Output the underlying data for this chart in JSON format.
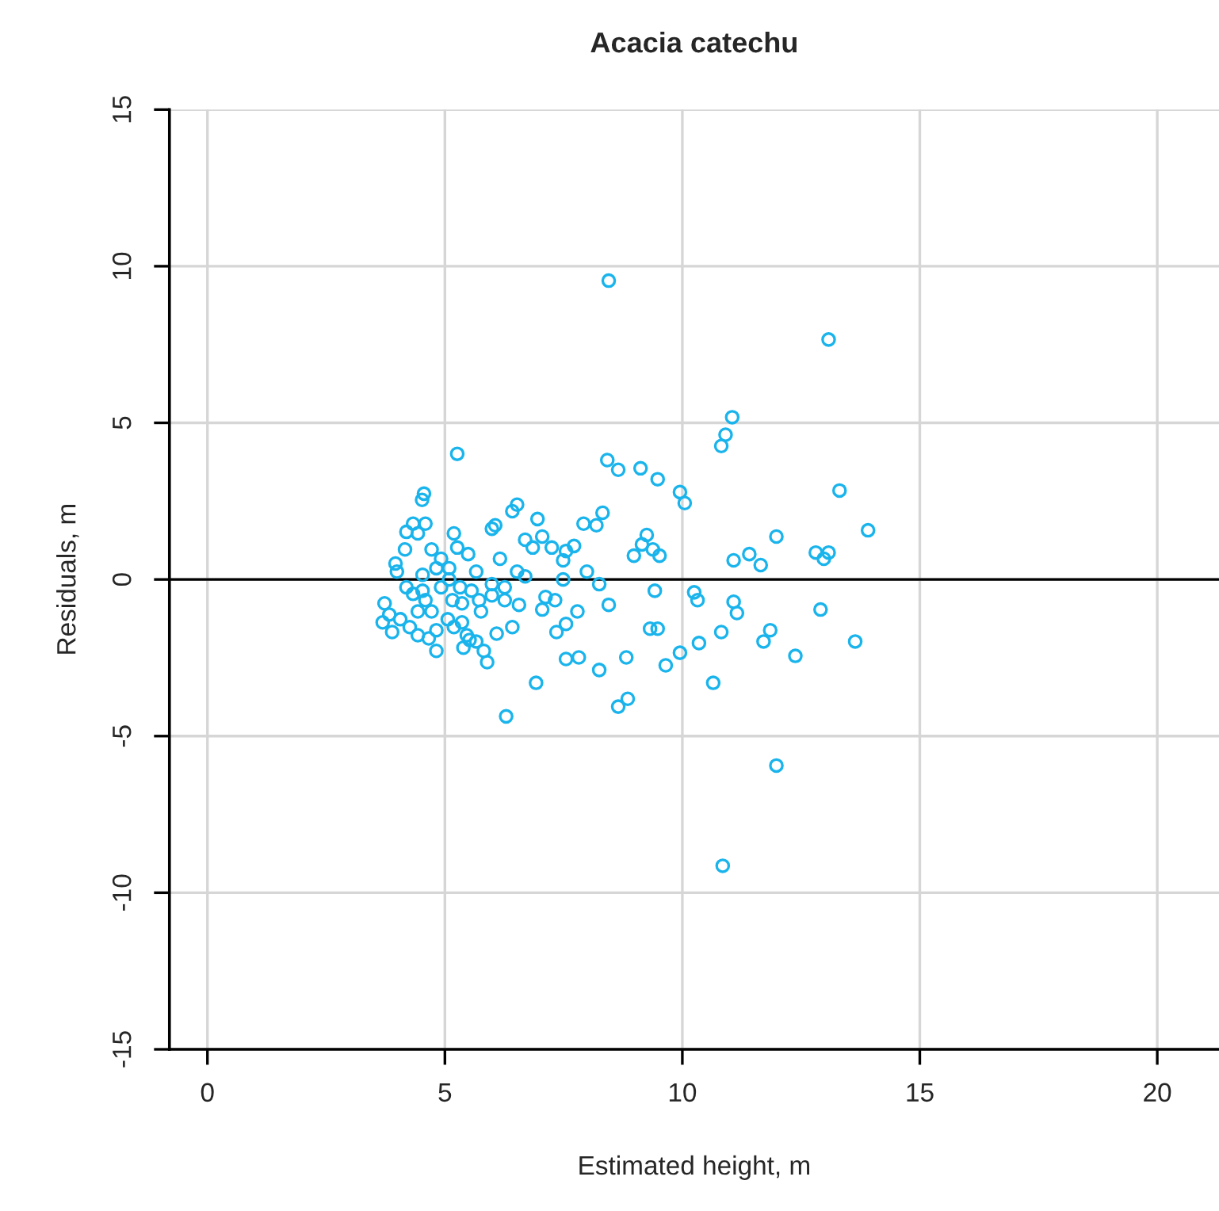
{
  "chart_data": {
    "type": "scatter",
    "title": "Acacia catechu",
    "xlabel": "Estimated height, m",
    "ylabel": "Residuals, m",
    "xlim": [
      -0.8,
      21.3
    ],
    "xticks": [
      0,
      5,
      10,
      15,
      20
    ],
    "ylim": [
      -15,
      15
    ],
    "yticks": [
      -15,
      -10,
      -5,
      0,
      5,
      10,
      15
    ],
    "grid": true,
    "marker": "circle",
    "legend": false,
    "ref_lines": [
      {
        "axis": "y",
        "value": 0,
        "color": "#000000",
        "line_style": "solid"
      }
    ],
    "series": [
      {
        "color": "#1ab4ec",
        "x": [
          8.45,
          13.08,
          11.05,
          10.91,
          10.82,
          5.26,
          8.42,
          8.65,
          9.12,
          9.48,
          9.95,
          10.05,
          13.31,
          13.91,
          11.98,
          8.32,
          7.92,
          8.19,
          9.25,
          9.15,
          9.38,
          9.52,
          8.98,
          11.08,
          11.41,
          11.65,
          12.81,
          12.98,
          13.08,
          10.25,
          10.32,
          11.08,
          11.15,
          12.91,
          9.32,
          9.48,
          9.42,
          8.45,
          10.82,
          11.85,
          11.71,
          13.64,
          12.38,
          10.35,
          9.95,
          9.65,
          8.82,
          8.25,
          8.65,
          8.85,
          10.65,
          6.92,
          6.29,
          11.98,
          10.85,
          7.82,
          7.55,
          6.95,
          7.05,
          6.52,
          6.42,
          6.06,
          5.99,
          7.49,
          7.25,
          6.69,
          6.85,
          7.72,
          7.55,
          6.52,
          5.66,
          6.16,
          7.32,
          7.05,
          6.56,
          6.42,
          6.09,
          5.76,
          7.12,
          7.49,
          7.79,
          7.55,
          7.99,
          8.25,
          5.82,
          5.66,
          5.46,
          5.36,
          5.89,
          7.35,
          6.69,
          4.56,
          4.52,
          4.33,
          4.43,
          4.19,
          4.59,
          3.96,
          3.99,
          4.16,
          4.72,
          4.92,
          5.19,
          5.26,
          5.49,
          5.09,
          4.82,
          4.53,
          3.73,
          3.83,
          3.69,
          3.89,
          4.06,
          4.26,
          4.43,
          4.33,
          4.59,
          4.72,
          4.19,
          4.53,
          4.82,
          4.82,
          4.66,
          5.06,
          5.16,
          5.32,
          5.36,
          4.92,
          5.09,
          4.43,
          5.19,
          5.39,
          5.52,
          5.56,
          5.72,
          5.99,
          6.26,
          6.26,
          5.99
        ],
        "values": [
          9.54,
          7.66,
          5.18,
          4.62,
          4.26,
          4.01,
          3.81,
          3.5,
          3.55,
          3.2,
          2.79,
          2.44,
          2.84,
          1.57,
          1.37,
          2.13,
          1.78,
          1.73,
          1.42,
          1.12,
          0.96,
          0.76,
          0.76,
          0.61,
          0.81,
          0.46,
          0.86,
          0.66,
          0.86,
          -0.41,
          -0.66,
          -0.71,
          -1.07,
          -0.96,
          -1.57,
          -1.57,
          -0.36,
          -0.81,
          -1.68,
          -1.62,
          -1.98,
          -1.98,
          -2.44,
          -2.03,
          -2.34,
          -2.74,
          -2.49,
          -2.89,
          -4.06,
          -3.81,
          -3.3,
          -3.3,
          -4.37,
          -5.94,
          -9.14,
          -2.49,
          -2.54,
          1.93,
          1.37,
          2.39,
          2.18,
          1.73,
          1.62,
          0.61,
          1.02,
          1.27,
          1.02,
          1.07,
          0.91,
          0.25,
          0.25,
          0.66,
          -0.66,
          -0.96,
          -0.81,
          -1.52,
          -1.73,
          -1.02,
          -0.56,
          0,
          -1.02,
          -1.42,
          0.25,
          -0.15,
          -2.28,
          -1.98,
          -1.78,
          -1.37,
          -2.64,
          -1.68,
          0.1,
          2.74,
          2.54,
          1.78,
          1.47,
          1.52,
          1.78,
          0.51,
          0.25,
          0.96,
          0.96,
          0.66,
          1.47,
          1.02,
          0.81,
          0.36,
          0.36,
          0.15,
          -0.76,
          -1.12,
          -1.37,
          -1.68,
          -1.27,
          -1.52,
          -1.02,
          -0.46,
          -0.66,
          -1.02,
          -0.25,
          -0.36,
          -1.62,
          -2.28,
          -1.88,
          -1.27,
          -0.66,
          -0.25,
          -0.76,
          -0.25,
          0,
          -1.78,
          -1.52,
          -2.18,
          -1.93,
          -0.36,
          -0.66,
          -0.51,
          -0.25,
          -0.66,
          -0.15
        ]
      }
    ]
  }
}
